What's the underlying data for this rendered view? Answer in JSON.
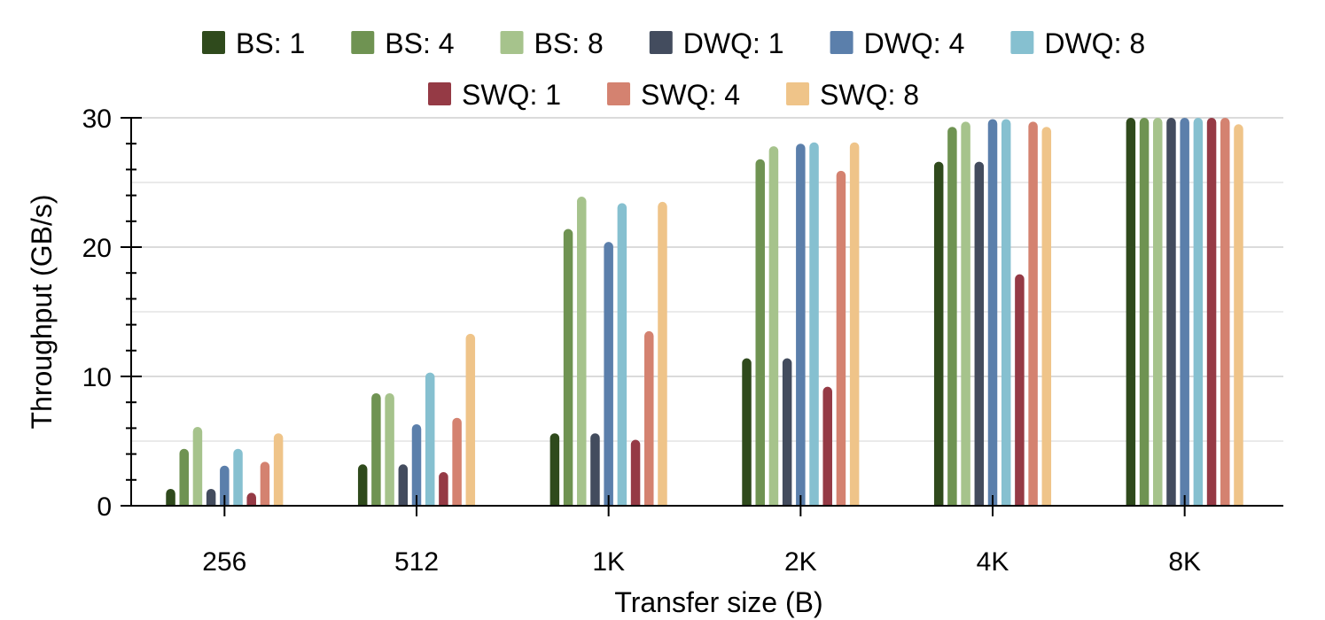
{
  "chart_data": {
    "type": "bar",
    "title": "",
    "xlabel": "Transfer size (B)",
    "ylabel": "Throughput (GB/s)",
    "ylim": [
      0,
      30
    ],
    "yticks": [
      0,
      10,
      20,
      30
    ],
    "grid": true,
    "legend_position": "top",
    "categories": [
      "256",
      "512",
      "1K",
      "2K",
      "4K",
      "8K"
    ],
    "series": [
      {
        "name": "BS: 1",
        "color": "#2f4a1c",
        "values": [
          1.3,
          3.2,
          5.6,
          11.4,
          26.6,
          30
        ]
      },
      {
        "name": "BS: 4",
        "color": "#6f9352",
        "values": [
          4.4,
          8.7,
          21.4,
          26.8,
          29.3,
          30
        ]
      },
      {
        "name": "BS: 8",
        "color": "#a6c38c",
        "values": [
          6.1,
          8.7,
          23.9,
          27.8,
          29.7,
          30
        ]
      },
      {
        "name": "DWQ: 1",
        "color": "#434c5e",
        "values": [
          1.3,
          3.2,
          5.6,
          11.4,
          26.6,
          30
        ]
      },
      {
        "name": "DWQ: 4",
        "color": "#5b7fab",
        "values": [
          3.1,
          6.3,
          20.4,
          28.0,
          29.9,
          30
        ]
      },
      {
        "name": "DWQ: 8",
        "color": "#86c0d0",
        "values": [
          4.4,
          10.3,
          23.4,
          28.1,
          29.9,
          30
        ]
      },
      {
        "name": "SWQ: 1",
        "color": "#953a45",
        "values": [
          1.0,
          2.6,
          5.1,
          9.2,
          17.9,
          30
        ]
      },
      {
        "name": "SWQ: 4",
        "color": "#d48270",
        "values": [
          3.4,
          6.8,
          13.5,
          25.9,
          29.7,
          30
        ]
      },
      {
        "name": "SWQ: 8",
        "color": "#efc489",
        "values": [
          5.6,
          13.3,
          23.5,
          28.1,
          29.3,
          29.5
        ]
      }
    ]
  }
}
